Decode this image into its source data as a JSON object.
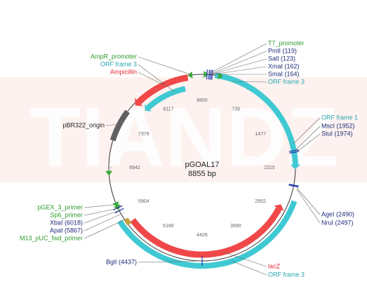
{
  "watermark": "TIANDZ",
  "plasmid": {
    "name": "pGOAL17",
    "size": "8855 bp"
  },
  "ticks": [
    739,
    1477,
    2215,
    2952,
    3690,
    4428,
    5166,
    5904,
    6642,
    7379,
    8117,
    8855
  ],
  "labels": {
    "left": [
      "AmpR_promoter",
      "ORF frame 3",
      "Ampicillin",
      "pBR322_origin",
      "pGEX_3_primer",
      "Sp6_primer",
      "XbaI (6018)",
      "ApaI (5867)",
      "M13_pUC_fwd_primer",
      "BglI (4437)"
    ],
    "right": [
      "T7_promoter",
      "PmlI (119)",
      "SalI (123)",
      "XmaI (162)",
      "SmaI (164)",
      "ORF frame 3",
      "ORF frame 1",
      "MscI (1952)",
      "StuI (1974)",
      "AgeI (2490)",
      "NruI (2497)",
      "lacZ",
      "ORF frame 3"
    ]
  }
}
